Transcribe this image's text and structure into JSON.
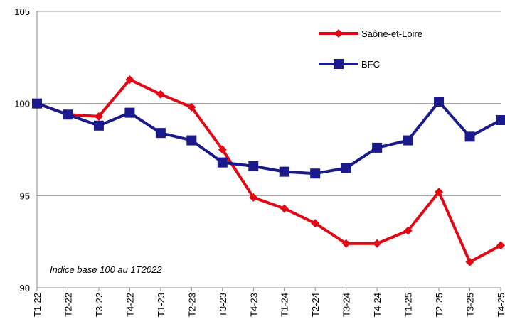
{
  "chart_data": {
    "type": "line",
    "annotation": "Indice base 100 au 1T2022",
    "categories": [
      "T1-22",
      "T2-22",
      "T3-22",
      "T4-22",
      "T1-23",
      "T2-23",
      "T3-23",
      "T4-23",
      "T1-24",
      "T2-24",
      "T3-24",
      "T4-24",
      "T1-25",
      "T2-25",
      "T3-25",
      "T4-25"
    ],
    "series": [
      {
        "name": "Saône-et-Loire",
        "color": "#e30613",
        "marker": "diamond",
        "values": [
          100,
          99.4,
          99.3,
          101.3,
          100.5,
          99.8,
          97.5,
          94.9,
          94.3,
          93.5,
          92.4,
          92.4,
          93.1,
          95.2,
          91.4,
          92.3
        ]
      },
      {
        "name": "BFC",
        "color": "#1a1a8c",
        "marker": "square",
        "values": [
          100,
          99.4,
          98.8,
          99.5,
          98.4,
          98.0,
          96.8,
          96.6,
          96.3,
          96.2,
          96.5,
          97.6,
          98.0,
          100.1,
          98.2,
          99.1
        ]
      }
    ],
    "ylim": [
      90,
      105
    ],
    "yticks": [
      90,
      95,
      100,
      105
    ],
    "grid": true,
    "legend": "upper right"
  }
}
